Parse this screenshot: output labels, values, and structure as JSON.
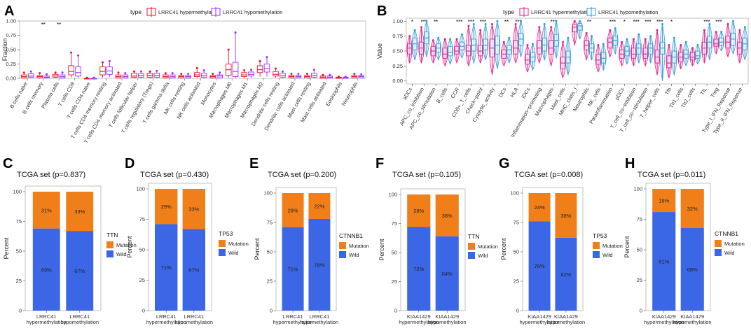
{
  "colors": {
    "hyper": "#E8112D",
    "hypo": "#9B30FF",
    "hyperB": "#E8198C",
    "hypoB": "#2E9BD6",
    "mutation": "#F07F1A",
    "wild": "#3B66E6"
  },
  "panelA": {
    "letter": "A",
    "legend_title": "type",
    "legend": [
      "LRRC41 hypermethylation",
      "LRRC41 hypomethylation"
    ],
    "ylabel": "Fraction",
    "yticks": [
      "0.00",
      "0.25",
      "0.50",
      "0.75",
      "1.00"
    ],
    "chart_data": {
      "type": "box",
      "ylim": [
        0,
        1
      ],
      "categories": [
        "B cells naive",
        "B cells memory",
        "Plasma cells",
        "T cells CD8",
        "T cells CD4 naive",
        "T cells CD4 memory resting",
        "T cells CD4 memory activated",
        "T cells follicular helper",
        "T cells regulatory (Tregs)",
        "T cells gamma delta",
        "NK cells resting",
        "NK cells activated",
        "Monocytes",
        "Macrophages M0",
        "Macrophages M1",
        "Macrophages M2",
        "Dendritic cells resting",
        "Dendritic cells activated",
        "Mast cells resting",
        "Mast cells activated",
        "Eosinophils",
        "Neutrophils"
      ],
      "significance": [
        "",
        "**",
        "**",
        "",
        "",
        "",
        "",
        "",
        "",
        "",
        "",
        "",
        "",
        "",
        "",
        "",
        "",
        "",
        "",
        "",
        "",
        ""
      ],
      "series": [
        {
          "name": "LRRC41 hypermethylation",
          "median": [
            0.03,
            0.03,
            0.04,
            0.12,
            0.0,
            0.12,
            0.03,
            0.04,
            0.05,
            0.03,
            0.03,
            0.06,
            0.03,
            0.15,
            0.06,
            0.15,
            0.07,
            0.03,
            0.03,
            0.02,
            0.01,
            0.03
          ],
          "q1": [
            0.01,
            0.01,
            0.02,
            0.06,
            0.0,
            0.06,
            0.01,
            0.02,
            0.02,
            0.01,
            0.01,
            0.03,
            0.01,
            0.05,
            0.03,
            0.1,
            0.04,
            0.01,
            0.01,
            0.0,
            0.0,
            0.01
          ],
          "q3": [
            0.06,
            0.05,
            0.07,
            0.22,
            0.0,
            0.2,
            0.06,
            0.09,
            0.09,
            0.06,
            0.05,
            0.1,
            0.05,
            0.25,
            0.1,
            0.22,
            0.12,
            0.05,
            0.05,
            0.04,
            0.02,
            0.05
          ],
          "max": [
            0.1,
            0.09,
            0.1,
            0.45,
            0.01,
            0.28,
            0.1,
            0.12,
            0.12,
            0.09,
            0.08,
            0.18,
            0.08,
            0.5,
            0.14,
            0.3,
            0.17,
            0.08,
            0.08,
            0.06,
            0.03,
            0.08
          ]
        },
        {
          "name": "LRRC41 hypomethylation",
          "median": [
            0.04,
            0.02,
            0.03,
            0.1,
            0.0,
            0.13,
            0.03,
            0.05,
            0.05,
            0.03,
            0.03,
            0.05,
            0.04,
            0.12,
            0.07,
            0.17,
            0.05,
            0.03,
            0.05,
            0.02,
            0.01,
            0.03
          ],
          "q1": [
            0.02,
            0.01,
            0.01,
            0.04,
            0.0,
            0.07,
            0.01,
            0.02,
            0.02,
            0.01,
            0.01,
            0.02,
            0.01,
            0.03,
            0.04,
            0.11,
            0.02,
            0.01,
            0.02,
            0.0,
            0.0,
            0.01
          ],
          "q3": [
            0.08,
            0.04,
            0.06,
            0.2,
            0.0,
            0.2,
            0.06,
            0.08,
            0.09,
            0.06,
            0.05,
            0.09,
            0.06,
            0.28,
            0.11,
            0.25,
            0.09,
            0.05,
            0.09,
            0.04,
            0.02,
            0.05
          ],
          "max": [
            0.12,
            0.07,
            0.1,
            0.4,
            0.01,
            0.3,
            0.09,
            0.12,
            0.13,
            0.09,
            0.08,
            0.14,
            0.1,
            0.8,
            0.15,
            0.37,
            0.12,
            0.08,
            0.15,
            0.06,
            0.03,
            0.07
          ]
        }
      ]
    }
  },
  "panelB": {
    "letter": "B",
    "legend_title": "type",
    "legend": [
      "LRRC41 hypermethylation",
      "LRRC41 hypomethylation"
    ],
    "ylabel": "Value",
    "yticks": [
      "0.00",
      "0.25",
      "0.50",
      "0.75",
      "1.00"
    ],
    "chart_data": {
      "type": "box",
      "ylim": [
        -0.05,
        1.05
      ],
      "categories": [
        "aDCs",
        "APC_co_inhibition",
        "APC_co_stimulation",
        "B_cells",
        "CCR",
        "CD8+_T_cells",
        "Check−point",
        "Cytolytic_activity",
        "DCs",
        "HLA",
        "iDCs",
        "Inflammation−promoting",
        "Macrophages",
        "Mast_cells",
        "MHC_class_I",
        "Neutrophils",
        "NK_cells",
        "Parainflammation",
        "pDCs",
        "T_cell_co−inhibition",
        "T_cell_co−stimulation",
        "T_helper_cells",
        "Tfh",
        "Th1_cells",
        "Th2_cells",
        "TIL",
        "Treg",
        "Type_I_IFN_Reponse",
        "Type_II_IFN_Reponse"
      ],
      "significance": [
        "*",
        "***",
        "**",
        "",
        "***",
        "***",
        "***",
        "",
        "**",
        "***",
        "",
        "",
        "***",
        "",
        "",
        "**",
        "",
        "***",
        "*",
        "***",
        "***",
        "***",
        "*",
        "",
        "",
        "***",
        "***",
        "",
        ""
      ],
      "series": [
        {
          "name": "LRRC41 hypermethylation",
          "median": [
            0.55,
            0.55,
            0.5,
            0.45,
            0.5,
            0.5,
            0.5,
            0.55,
            0.45,
            0.55,
            0.35,
            0.55,
            0.55,
            0.3,
            0.9,
            0.6,
            0.35,
            0.65,
            0.45,
            0.45,
            0.45,
            0.4,
            0.3,
            0.4,
            0.4,
            0.55,
            0.62,
            0.65,
            0.55
          ],
          "q1": [
            0.45,
            0.45,
            0.42,
            0.38,
            0.45,
            0.42,
            0.42,
            0.4,
            0.38,
            0.45,
            0.28,
            0.45,
            0.45,
            0.2,
            0.82,
            0.52,
            0.28,
            0.55,
            0.38,
            0.38,
            0.38,
            0.3,
            0.22,
            0.32,
            0.35,
            0.45,
            0.58,
            0.55,
            0.45
          ],
          "q3": [
            0.62,
            0.65,
            0.58,
            0.55,
            0.58,
            0.6,
            0.6,
            0.7,
            0.52,
            0.68,
            0.45,
            0.68,
            0.68,
            0.4,
            0.95,
            0.68,
            0.45,
            0.72,
            0.52,
            0.55,
            0.55,
            0.52,
            0.42,
            0.48,
            0.48,
            0.65,
            0.7,
            0.75,
            0.65
          ],
          "max": [
            0.75,
            0.9,
            0.68,
            0.7,
            0.7,
            0.92,
            0.85,
            0.95,
            0.65,
            0.95,
            0.6,
            0.9,
            0.9,
            0.65,
            1.0,
            0.8,
            0.6,
            0.85,
            0.65,
            0.7,
            0.7,
            0.85,
            0.6,
            0.6,
            0.55,
            0.85,
            0.82,
            0.95,
            0.85
          ],
          "min": [
            0.3,
            0.3,
            0.3,
            0.25,
            0.3,
            0.25,
            0.3,
            0.1,
            0.25,
            0.3,
            0.15,
            0.3,
            0.25,
            0.05,
            0.6,
            0.35,
            0.15,
            0.4,
            0.25,
            0.25,
            0.25,
            0.1,
            0.05,
            0.2,
            0.25,
            0.3,
            0.45,
            0.4,
            0.3
          ]
        },
        {
          "name": "LRRC41 hypomethylation",
          "median": [
            0.62,
            0.72,
            0.55,
            0.48,
            0.58,
            0.6,
            0.6,
            0.6,
            0.52,
            0.7,
            0.4,
            0.6,
            0.68,
            0.4,
            0.92,
            0.55,
            0.38,
            0.68,
            0.5,
            0.55,
            0.55,
            0.55,
            0.4,
            0.45,
            0.42,
            0.65,
            0.65,
            0.7,
            0.62
          ],
          "q1": [
            0.52,
            0.62,
            0.48,
            0.42,
            0.52,
            0.5,
            0.52,
            0.45,
            0.45,
            0.6,
            0.32,
            0.5,
            0.58,
            0.3,
            0.85,
            0.48,
            0.3,
            0.6,
            0.42,
            0.45,
            0.45,
            0.45,
            0.3,
            0.38,
            0.38,
            0.55,
            0.6,
            0.6,
            0.52
          ],
          "q3": [
            0.72,
            0.82,
            0.62,
            0.58,
            0.65,
            0.7,
            0.7,
            0.75,
            0.6,
            0.8,
            0.48,
            0.72,
            0.78,
            0.5,
            0.96,
            0.62,
            0.48,
            0.75,
            0.58,
            0.62,
            0.62,
            0.65,
            0.5,
            0.52,
            0.5,
            0.75,
            0.72,
            0.8,
            0.72
          ],
          "max": [
            0.85,
            1.0,
            0.72,
            0.7,
            0.78,
            0.95,
            0.95,
            1.0,
            0.72,
            1.0,
            0.62,
            0.95,
            1.0,
            0.72,
            1.0,
            0.75,
            0.62,
            0.88,
            0.7,
            0.78,
            0.75,
            0.95,
            0.72,
            0.65,
            0.6,
            0.95,
            0.82,
            1.0,
            0.9
          ],
          "min": [
            0.35,
            0.4,
            0.35,
            0.28,
            0.38,
            0.3,
            0.35,
            0.2,
            0.3,
            0.4,
            0.18,
            0.35,
            0.38,
            0.1,
            0.7,
            0.35,
            0.18,
            0.45,
            0.28,
            0.3,
            0.3,
            0.0,
            0.1,
            0.25,
            0.28,
            0.35,
            0.5,
            0.45,
            0.35
          ]
        }
      ]
    }
  },
  "stacked": [
    {
      "letter": "C",
      "title": "TCGA set (p=0.837)",
      "gene": "TTN",
      "ylabel": "Percent",
      "yticks": [
        "0",
        "25",
        "50",
        "75",
        "100"
      ],
      "legend": [
        "Mutation",
        "Wild"
      ],
      "chart_data": {
        "type": "stacked-bar",
        "categories": [
          "LRRC41\nhypermethylation",
          "LRRC41\nhypomethylation"
        ],
        "series": [
          {
            "name": "Mutation",
            "values": [
              31,
              33
            ]
          },
          {
            "name": "Wild",
            "values": [
              69,
              67
            ]
          }
        ],
        "labels_mut": [
          "31%",
          "33%"
        ],
        "labels_wild": [
          "69%",
          "67%"
        ],
        "ylim": [
          0,
          100
        ]
      }
    },
    {
      "letter": "D",
      "title": "TCGA set (p=0.430)",
      "gene": "TP53",
      "ylabel": "Percent",
      "yticks": [
        "0",
        "25",
        "50",
        "75",
        "100"
      ],
      "legend": [
        "Mutation",
        "Wild"
      ],
      "chart_data": {
        "type": "stacked-bar",
        "categories": [
          "LRRC41\nhypermethylation",
          "LRRC41\nhypomethylation"
        ],
        "series": [
          {
            "name": "Mutation",
            "values": [
              29,
              33
            ]
          },
          {
            "name": "Wild",
            "values": [
              71,
              67
            ]
          }
        ],
        "labels_mut": [
          "29%",
          "33%"
        ],
        "labels_wild": [
          "71%",
          "67%"
        ],
        "ylim": [
          0,
          100
        ]
      }
    },
    {
      "letter": "E",
      "title": "TCGA set (p=0.200)",
      "gene": "CTNNB1",
      "ylabel": "Percent",
      "yticks": [
        "0",
        "25",
        "50",
        "75",
        "100"
      ],
      "legend": [
        "Mutation",
        "Wild"
      ],
      "chart_data": {
        "type": "stacked-bar",
        "categories": [
          "LRRC41\nhypermethylation",
          "LRRC41\nhypomethylation"
        ],
        "series": [
          {
            "name": "Mutation",
            "values": [
              29,
              22
            ]
          },
          {
            "name": "Wild",
            "values": [
              71,
              78
            ]
          }
        ],
        "labels_mut": [
          "29%",
          "22%"
        ],
        "labels_wild": [
          "71%",
          "78%"
        ],
        "ylim": [
          0,
          100
        ]
      }
    },
    {
      "letter": "F",
      "title": "TCGA set (p=0.105)",
      "gene": "TTN",
      "ylabel": "Percent",
      "yticks": [
        "0",
        "25",
        "50",
        "75",
        "100"
      ],
      "legend": [
        "Mutation",
        "Wild"
      ],
      "chart_data": {
        "type": "stacked-bar",
        "categories": [
          "KIAA1429\nhypermethylation",
          "KIAA1429\nhypomethylation"
        ],
        "series": [
          {
            "name": "Mutation",
            "values": [
              28,
              36
            ]
          },
          {
            "name": "Wild",
            "values": [
              72,
              64
            ]
          }
        ],
        "labels_mut": [
          "28%",
          "36%"
        ],
        "labels_wild": [
          "72%",
          "64%"
        ],
        "ylim": [
          0,
          100
        ]
      }
    },
    {
      "letter": "G",
      "title": "TCGA set (p=0.008)",
      "gene": "TP53",
      "ylabel": "Percent",
      "yticks": [
        "0",
        "25",
        "50",
        "75",
        "100"
      ],
      "legend": [
        "Mutation",
        "Wild"
      ],
      "chart_data": {
        "type": "stacked-bar",
        "categories": [
          "KIAA1429\nhypermethylation",
          "KIAA1429\nhypomethylation"
        ],
        "series": [
          {
            "name": "Mutation",
            "values": [
              24,
              38
            ]
          },
          {
            "name": "Wild",
            "values": [
              76,
              62
            ]
          }
        ],
        "labels_mut": [
          "24%",
          "38%"
        ],
        "labels_wild": [
          "76%",
          "62%"
        ],
        "ylim": [
          0,
          100
        ]
      }
    },
    {
      "letter": "H",
      "title": "TCGA set (p=0.011)",
      "gene": "CTNNB1",
      "ylabel": "Percent",
      "yticks": [
        "0",
        "25",
        "50",
        "75",
        "100"
      ],
      "legend": [
        "Mutation",
        "Wild"
      ],
      "chart_data": {
        "type": "stacked-bar",
        "categories": [
          "KIAA1429\nhypermethylation",
          "KIAA1429\nhypomethylation"
        ],
        "series": [
          {
            "name": "Mutation",
            "values": [
              19,
              32
            ]
          },
          {
            "name": "Wild",
            "values": [
              81,
              68
            ]
          }
        ],
        "labels_mut": [
          "19%",
          "32%"
        ],
        "labels_wild": [
          "81%",
          "68%"
        ],
        "ylim": [
          0,
          100
        ]
      }
    }
  ]
}
